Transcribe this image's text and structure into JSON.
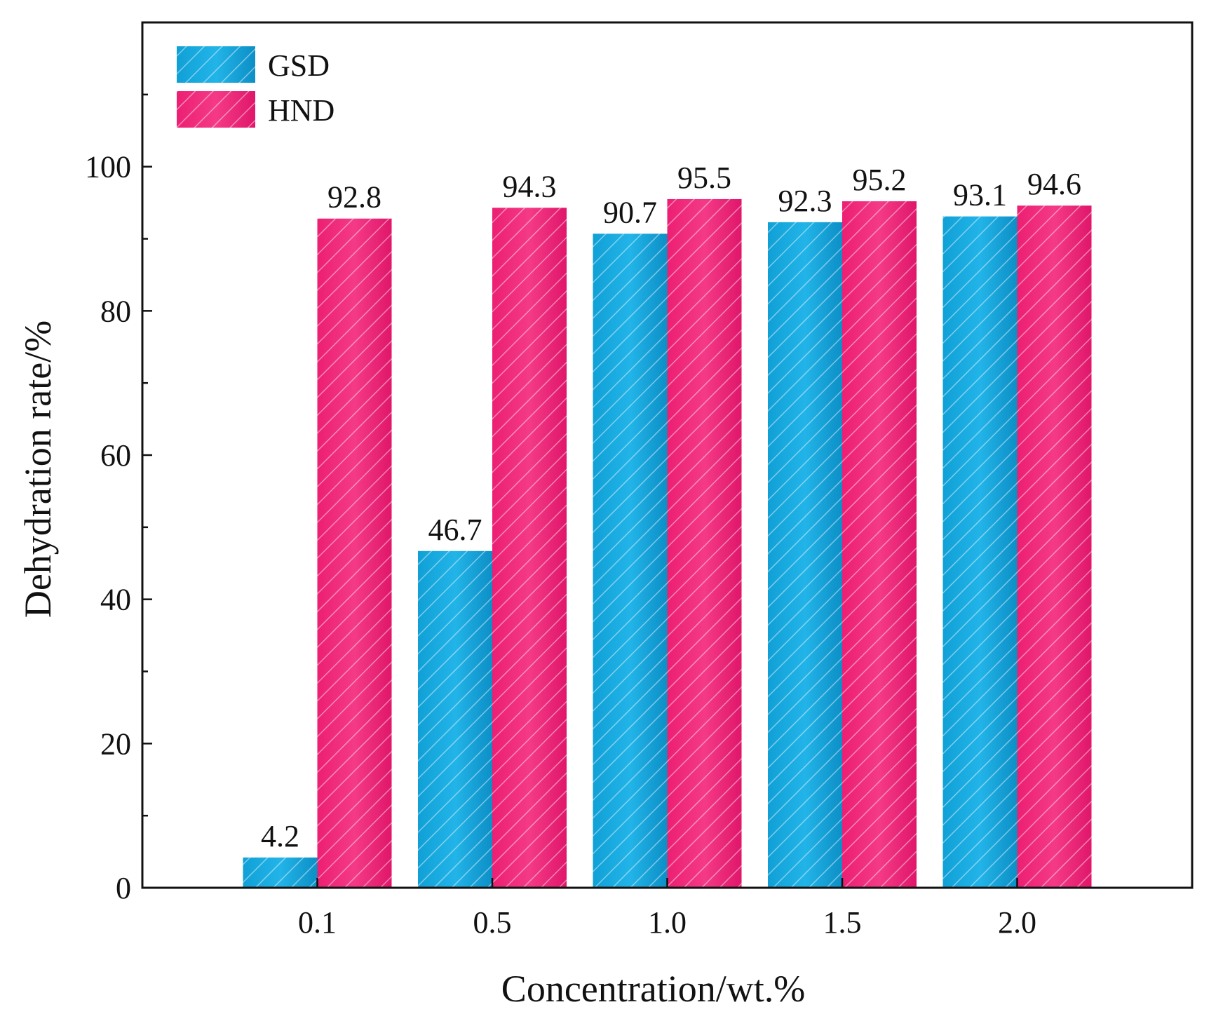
{
  "chart_data": {
    "type": "bar",
    "title": "",
    "xlabel": "Concentration/wt.%",
    "ylabel": "Dehydration rate/%",
    "categories": [
      "0.1",
      "0.5",
      "1.0",
      "1.5",
      "2.0"
    ],
    "series": [
      {
        "name": "GSD",
        "values": [
          4.2,
          46.7,
          90.7,
          92.3,
          93.1
        ],
        "labels": [
          "4.2",
          "46.7",
          "90.7",
          "92.3",
          "93.1"
        ],
        "color": "#1aa7dc"
      },
      {
        "name": "HND",
        "values": [
          92.8,
          94.3,
          95.5,
          95.2,
          94.6
        ],
        "labels": [
          "92.8",
          "94.3",
          "95.5",
          "95.2",
          "94.6"
        ],
        "color": "#f0287a"
      }
    ],
    "ylim": [
      0,
      120
    ],
    "yticks": [
      "0",
      "20",
      "40",
      "60",
      "80",
      "100"
    ],
    "grid": false,
    "legend_position": "top-left"
  }
}
